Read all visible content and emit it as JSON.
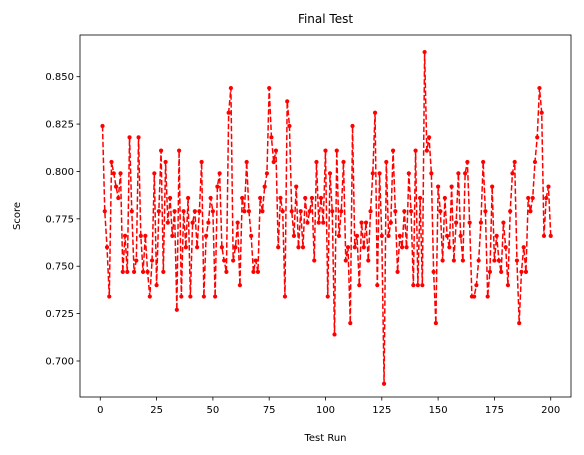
{
  "chart_data": {
    "type": "line",
    "title": "Final Test",
    "xlabel": "Test Run",
    "ylabel": "Score",
    "xlim": [
      -9,
      209
    ],
    "ylim": [
      0.681,
      0.872
    ],
    "xticks": [
      0,
      25,
      50,
      75,
      100,
      125,
      150,
      175,
      200
    ],
    "yticks": [
      0.7,
      0.725,
      0.75,
      0.775,
      0.8,
      0.825,
      0.85
    ],
    "ytick_labels": [
      "0.700",
      "0.725",
      "0.750",
      "0.775",
      "0.800",
      "0.825",
      "0.850"
    ],
    "grid": false,
    "series": [
      {
        "color": "#ff0000",
        "line_style": "dashed",
        "marker": "circle",
        "x": [
          1,
          2,
          3,
          4,
          5,
          6,
          7,
          8,
          9,
          10,
          11,
          12,
          13,
          14,
          15,
          16,
          17,
          18,
          19,
          20,
          21,
          22,
          23,
          24,
          25,
          26,
          27,
          28,
          29,
          30,
          31,
          32,
          33,
          34,
          35,
          36,
          37,
          38,
          39,
          40,
          41,
          42,
          43,
          44,
          45,
          46,
          47,
          48,
          49,
          50,
          51,
          52,
          53,
          54,
          55,
          56,
          57,
          58,
          59,
          60,
          61,
          62,
          63,
          64,
          65,
          66,
          67,
          68,
          69,
          70,
          71,
          72,
          73,
          74,
          75,
          76,
          77,
          78,
          79,
          80,
          81,
          82,
          83,
          84,
          85,
          86,
          87,
          88,
          89,
          90,
          91,
          92,
          93,
          94,
          95,
          96,
          97,
          98,
          99,
          100,
          101,
          102,
          103,
          104,
          105,
          106,
          107,
          108,
          109,
          110,
          111,
          112,
          113,
          114,
          115,
          116,
          117,
          118,
          119,
          120,
          121,
          122,
          123,
          124,
          125,
          126,
          127,
          128,
          129,
          130,
          131,
          132,
          133,
          134,
          135,
          136,
          137,
          138,
          139,
          140,
          141,
          142,
          143,
          144,
          145,
          146,
          147,
          148,
          149,
          150,
          151,
          152,
          153,
          154,
          155,
          156,
          157,
          158,
          159,
          160,
          161,
          162,
          163,
          164,
          165,
          166,
          167,
          168,
          169,
          170,
          171,
          172,
          173,
          174,
          175,
          176,
          177,
          178,
          179,
          180,
          181,
          182,
          183,
          184,
          185,
          186,
          187,
          188,
          189,
          190,
          191,
          192,
          193,
          194,
          195,
          196,
          197,
          198,
          199,
          200
        ],
        "y": [
          0.824,
          0.779,
          0.76,
          0.734,
          0.805,
          0.799,
          0.792,
          0.786,
          0.799,
          0.747,
          0.766,
          0.747,
          0.818,
          0.779,
          0.747,
          0.753,
          0.818,
          0.766,
          0.747,
          0.766,
          0.747,
          0.734,
          0.753,
          0.799,
          0.74,
          0.779,
          0.811,
          0.747,
          0.805,
          0.773,
          0.786,
          0.766,
          0.779,
          0.727,
          0.811,
          0.734,
          0.779,
          0.76,
          0.786,
          0.734,
          0.773,
          0.779,
          0.76,
          0.779,
          0.805,
          0.734,
          0.766,
          0.773,
          0.786,
          0.779,
          0.734,
          0.792,
          0.799,
          0.76,
          0.753,
          0.747,
          0.831,
          0.844,
          0.753,
          0.76,
          0.773,
          0.74,
          0.786,
          0.779,
          0.805,
          0.779,
          0.766,
          0.747,
          0.753,
          0.747,
          0.786,
          0.779,
          0.792,
          0.799,
          0.844,
          0.818,
          0.805,
          0.811,
          0.76,
          0.786,
          0.779,
          0.734,
          0.837,
          0.824,
          0.779,
          0.766,
          0.792,
          0.76,
          0.779,
          0.76,
          0.786,
          0.773,
          0.779,
          0.786,
          0.753,
          0.805,
          0.773,
          0.786,
          0.773,
          0.811,
          0.734,
          0.799,
          0.779,
          0.714,
          0.811,
          0.766,
          0.779,
          0.805,
          0.753,
          0.76,
          0.72,
          0.824,
          0.76,
          0.766,
          0.74,
          0.773,
          0.76,
          0.773,
          0.753,
          0.779,
          0.799,
          0.831,
          0.74,
          0.799,
          0.766,
          0.688,
          0.805,
          0.766,
          0.773,
          0.811,
          0.779,
          0.747,
          0.766,
          0.76,
          0.779,
          0.76,
          0.799,
          0.779,
          0.74,
          0.811,
          0.74,
          0.786,
          0.74,
          0.863,
          0.811,
          0.818,
          0.799,
          0.747,
          0.72,
          0.792,
          0.779,
          0.753,
          0.786,
          0.766,
          0.76,
          0.792,
          0.753,
          0.773,
          0.799,
          0.766,
          0.753,
          0.799,
          0.805,
          0.773,
          0.734,
          0.734,
          0.74,
          0.753,
          0.773,
          0.805,
          0.779,
          0.734,
          0.747,
          0.792,
          0.753,
          0.766,
          0.753,
          0.747,
          0.773,
          0.76,
          0.74,
          0.779,
          0.799,
          0.805,
          0.753,
          0.72,
          0.747,
          0.76,
          0.747,
          0.786,
          0.779,
          0.786,
          0.805,
          0.818,
          0.844,
          0.831,
          0.766,
          0.786,
          0.792,
          0.766
        ]
      }
    ]
  }
}
